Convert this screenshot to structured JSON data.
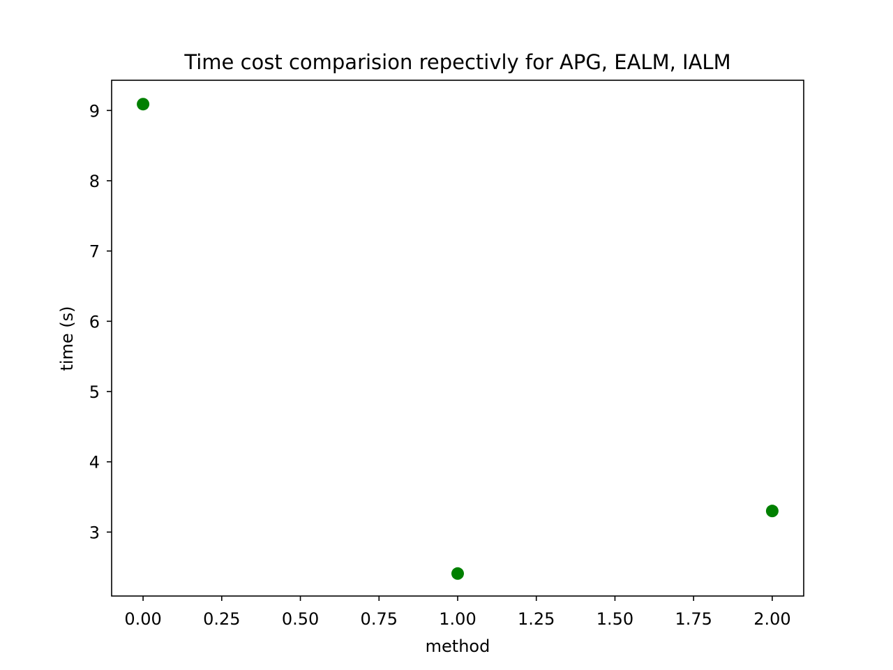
{
  "chart_data": {
    "type": "scatter",
    "title": "Time cost comparision repectivly for APG, EALM, IALM",
    "xlabel": "method",
    "ylabel": "time (s)",
    "xlim": [
      -0.1,
      2.1
    ],
    "ylim": [
      2.09,
      9.43
    ],
    "x_ticks": [
      0.0,
      0.25,
      0.5,
      0.75,
      1.0,
      1.25,
      1.5,
      1.75,
      2.0
    ],
    "x_tick_labels": [
      "0.00",
      "0.25",
      "0.50",
      "0.75",
      "1.00",
      "1.25",
      "1.50",
      "1.75",
      "2.00"
    ],
    "y_ticks": [
      3,
      4,
      5,
      6,
      7,
      8,
      9
    ],
    "y_tick_labels": [
      "3",
      "4",
      "5",
      "6",
      "7",
      "8",
      "9"
    ],
    "grid": false,
    "legend": "none",
    "series": [
      {
        "color": "#008000",
        "x": [
          0,
          1,
          2
        ],
        "y": [
          9.09,
          2.41,
          3.3
        ]
      }
    ]
  }
}
